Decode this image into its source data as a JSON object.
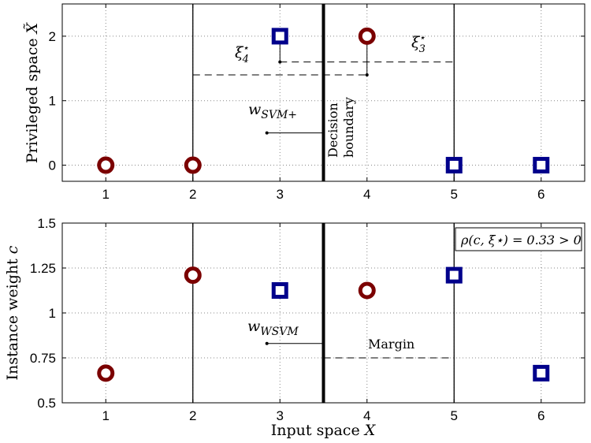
{
  "chart_data": [
    {
      "type": "scatter",
      "xlabel": "",
      "ylabel": "Privileged space",
      "ylabel_symbol": "X̃",
      "xlim": [
        0.5,
        6.5
      ],
      "ylim": [
        -0.25,
        2.5
      ],
      "xticks": [
        "1",
        "2",
        "3",
        "4",
        "5",
        "6"
      ],
      "yticks": [
        "0",
        "1",
        "2"
      ],
      "grid": true,
      "series": [
        {
          "marker": "circle",
          "color": "#7b0000",
          "points": [
            {
              "x": 1,
              "y": 0
            },
            {
              "x": 2,
              "y": 0
            },
            {
              "x": 4,
              "y": 2
            }
          ]
        },
        {
          "marker": "square",
          "color": "#00008b",
          "points": [
            {
              "x": 3,
              "y": 2
            },
            {
              "x": 5,
              "y": 0
            },
            {
              "x": 6,
              "y": 0
            }
          ]
        }
      ],
      "decision_boundary_x": 3.5,
      "margin_lines_x": [
        2,
        5
      ],
      "slack": [
        {
          "label": "ξ",
          "sub": "4",
          "sup": "⋆",
          "from_x": 2,
          "to_x": 4,
          "y": 1.4,
          "marker_x": 4
        },
        {
          "label": "ξ",
          "sub": "3",
          "sup": "⋆",
          "from_x": 3,
          "to_x": 5,
          "y": 1.6,
          "marker_x": 3
        }
      ],
      "w_label": "w",
      "w_sub": "SVM+",
      "boundary_label_line1": "Decision",
      "boundary_label_line2": "boundary"
    },
    {
      "type": "scatter",
      "xlabel": "Input space",
      "xlabel_symbol": "X",
      "ylabel": "Instance weight",
      "ylabel_symbol": "c",
      "xlim": [
        0.5,
        6.5
      ],
      "ylim": [
        0.5,
        1.5
      ],
      "xticks": [
        "1",
        "2",
        "3",
        "4",
        "5",
        "6"
      ],
      "yticks": [
        "0.5",
        "0.75",
        "1",
        "1.25",
        "1.5"
      ],
      "grid": true,
      "series": [
        {
          "marker": "circle",
          "color": "#7b0000",
          "points": [
            {
              "x": 1,
              "y": 0.665
            },
            {
              "x": 2,
              "y": 1.21
            },
            {
              "x": 4,
              "y": 1.125
            }
          ]
        },
        {
          "marker": "square",
          "color": "#00008b",
          "points": [
            {
              "x": 3,
              "y": 1.125
            },
            {
              "x": 5,
              "y": 1.21
            },
            {
              "x": 6,
              "y": 0.665
            }
          ]
        }
      ],
      "decision_boundary_x": 3.5,
      "margin_lines_x": [
        2,
        5
      ],
      "margin": {
        "label": "Margin",
        "from_x": 3.5,
        "to_x": 5,
        "y": 0.75
      },
      "w_label": "w",
      "w_sub": "WSVM",
      "rho_text": "ρ(c, ξ⋆) = 0.33 > 0"
    }
  ]
}
